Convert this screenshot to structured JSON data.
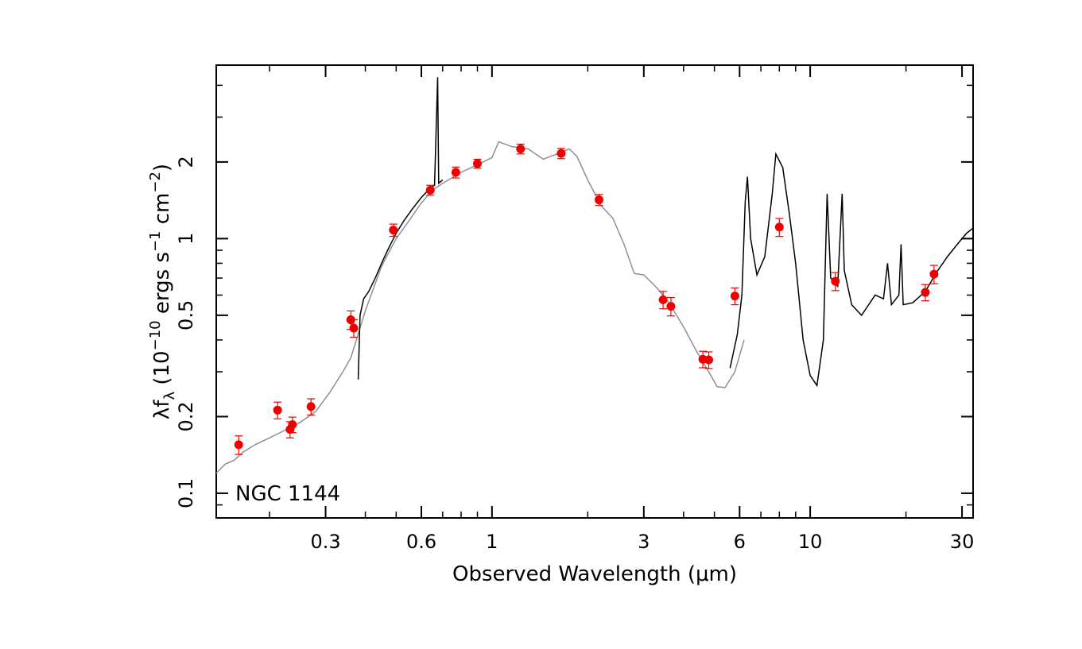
{
  "chart_data": {
    "type": "scatter",
    "title": "",
    "annotation": "NGC 1144",
    "xlabel": "Observed Wavelength (μm)",
    "ylabel": "λfλ (10⁻¹⁰ ergs s⁻¹ cm⁻²)",
    "ylabel_parts": {
      "lambda": "λ",
      "f": "f",
      "sub": "λ",
      "open": " (10",
      "exp1": "−10",
      "mid": " ergs s",
      "exp2": "−1",
      "mid2": " cm",
      "exp3": "−2",
      "close": ")"
    },
    "x_scale": "log",
    "y_scale": "log",
    "xlim": [
      0.136,
      32.5
    ],
    "ylim": [
      0.08,
      4.8
    ],
    "x_ticks": [
      {
        "value": 0.3,
        "label": "0.3"
      },
      {
        "value": 0.6,
        "label": "0.6"
      },
      {
        "value": 1,
        "label": "1"
      },
      {
        "value": 3,
        "label": "3"
      },
      {
        "value": 6,
        "label": "6"
      },
      {
        "value": 10,
        "label": "10"
      },
      {
        "value": 30,
        "label": "30"
      }
    ],
    "y_ticks": [
      {
        "value": 0.1,
        "label": "0.1"
      },
      {
        "value": 0.2,
        "label": "0.2"
      },
      {
        "value": 0.5,
        "label": "0.5"
      },
      {
        "value": 1,
        "label": "1"
      },
      {
        "value": 2,
        "label": "2"
      }
    ],
    "grid": false,
    "colors": {
      "photometry": "#ee0000",
      "model_spectrum": "#909090",
      "observed_spectrum": "#000000"
    },
    "series": [
      {
        "kind": "photometry",
        "points": [
          {
            "x": 0.16,
            "y": 0.155,
            "err": 0.013
          },
          {
            "x": 0.212,
            "y": 0.212,
            "err": 0.016
          },
          {
            "x": 0.232,
            "y": 0.178,
            "err": 0.013
          },
          {
            "x": 0.236,
            "y": 0.186,
            "err": 0.013
          },
          {
            "x": 0.27,
            "y": 0.219,
            "err": 0.016
          },
          {
            "x": 0.36,
            "y": 0.48,
            "err": 0.04
          },
          {
            "x": 0.368,
            "y": 0.445,
            "err": 0.035
          },
          {
            "x": 0.49,
            "y": 1.08,
            "err": 0.06
          },
          {
            "x": 0.64,
            "y": 1.55,
            "err": 0.07
          },
          {
            "x": 0.77,
            "y": 1.82,
            "err": 0.09
          },
          {
            "x": 0.9,
            "y": 1.97,
            "err": 0.08
          },
          {
            "x": 1.23,
            "y": 2.25,
            "err": 0.1
          },
          {
            "x": 1.65,
            "y": 2.16,
            "err": 0.1
          },
          {
            "x": 2.17,
            "y": 1.42,
            "err": 0.07
          },
          {
            "x": 3.45,
            "y": 0.575,
            "err": 0.045
          },
          {
            "x": 3.65,
            "y": 0.542,
            "err": 0.045
          },
          {
            "x": 4.6,
            "y": 0.336,
            "err": 0.025
          },
          {
            "x": 4.8,
            "y": 0.334,
            "err": 0.025
          },
          {
            "x": 5.8,
            "y": 0.595,
            "err": 0.045
          },
          {
            "x": 8.0,
            "y": 1.11,
            "err": 0.09
          },
          {
            "x": 12.0,
            "y": 0.68,
            "err": 0.055
          },
          {
            "x": 23.0,
            "y": 0.615,
            "err": 0.045
          },
          {
            "x": 24.5,
            "y": 0.725,
            "err": 0.06
          }
        ]
      },
      {
        "kind": "model_spectrum",
        "points": [
          [
            0.136,
            0.12
          ],
          [
            0.145,
            0.13
          ],
          [
            0.155,
            0.135
          ],
          [
            0.165,
            0.145
          ],
          [
            0.18,
            0.155
          ],
          [
            0.2,
            0.165
          ],
          [
            0.22,
            0.175
          ],
          [
            0.25,
            0.19
          ],
          [
            0.28,
            0.21
          ],
          [
            0.31,
            0.25
          ],
          [
            0.34,
            0.3
          ],
          [
            0.36,
            0.34
          ],
          [
            0.37,
            0.38
          ],
          [
            0.4,
            0.52
          ],
          [
            0.45,
            0.78
          ],
          [
            0.5,
            1.0
          ],
          [
            0.55,
            1.18
          ],
          [
            0.6,
            1.38
          ],
          [
            0.65,
            1.55
          ],
          [
            0.7,
            1.65
          ],
          [
            0.8,
            1.82
          ],
          [
            0.9,
            1.95
          ],
          [
            1.0,
            2.08
          ],
          [
            1.05,
            2.4
          ],
          [
            1.15,
            2.3
          ],
          [
            1.3,
            2.25
          ],
          [
            1.45,
            2.05
          ],
          [
            1.6,
            2.15
          ],
          [
            1.75,
            2.25
          ],
          [
            1.85,
            2.1
          ],
          [
            2.0,
            1.7
          ],
          [
            2.2,
            1.35
          ],
          [
            2.4,
            1.2
          ],
          [
            2.6,
            0.95
          ],
          [
            2.8,
            0.73
          ],
          [
            3.0,
            0.72
          ],
          [
            3.3,
            0.64
          ],
          [
            3.6,
            0.56
          ],
          [
            4.0,
            0.45
          ],
          [
            4.4,
            0.36
          ],
          [
            4.8,
            0.3
          ],
          [
            5.1,
            0.262
          ],
          [
            5.4,
            0.26
          ],
          [
            5.8,
            0.3
          ],
          [
            6.2,
            0.4
          ]
        ]
      },
      {
        "kind": "observed_spectrum",
        "segments": [
          [
            [
              0.38,
              0.28
            ],
            [
              0.385,
              0.5
            ],
            [
              0.395,
              0.58
            ],
            [
              0.41,
              0.62
            ],
            [
              0.43,
              0.7
            ],
            [
              0.45,
              0.8
            ],
            [
              0.47,
              0.9
            ],
            [
              0.5,
              1.05
            ],
            [
              0.53,
              1.18
            ],
            [
              0.56,
              1.3
            ],
            [
              0.6,
              1.45
            ],
            [
              0.64,
              1.58
            ],
            [
              0.66,
              1.62
            ],
            [
              0.675,
              4.3
            ],
            [
              0.68,
              1.65
            ],
            [
              0.7,
              1.7
            ]
          ],
          [
            [
              5.6,
              0.31
            ],
            [
              5.9,
              0.42
            ],
            [
              6.1,
              0.6
            ],
            [
              6.25,
              1.4
            ],
            [
              6.35,
              1.75
            ],
            [
              6.5,
              1.0
            ],
            [
              6.8,
              0.72
            ],
            [
              7.2,
              0.85
            ],
            [
              7.6,
              1.5
            ],
            [
              7.8,
              2.15
            ],
            [
              8.2,
              1.9
            ],
            [
              8.6,
              1.25
            ],
            [
              9.0,
              0.8
            ],
            [
              9.5,
              0.4
            ],
            [
              10.0,
              0.29
            ],
            [
              10.5,
              0.265
            ],
            [
              11.0,
              0.4
            ],
            [
              11.3,
              1.5
            ],
            [
              11.6,
              0.7
            ],
            [
              12.2,
              0.65
            ],
            [
              12.6,
              1.5
            ],
            [
              12.8,
              0.75
            ],
            [
              13.5,
              0.55
            ],
            [
              14.5,
              0.5
            ],
            [
              16.0,
              0.6
            ],
            [
              17.0,
              0.58
            ],
            [
              17.5,
              0.8
            ],
            [
              18.0,
              0.55
            ],
            [
              19.0,
              0.6
            ],
            [
              19.3,
              0.95
            ],
            [
              19.6,
              0.55
            ],
            [
              21.0,
              0.56
            ],
            [
              23.0,
              0.62
            ],
            [
              25.0,
              0.74
            ],
            [
              27.0,
              0.85
            ],
            [
              29.0,
              0.95
            ],
            [
              31.0,
              1.05
            ],
            [
              32.5,
              1.1
            ]
          ]
        ]
      }
    ]
  }
}
